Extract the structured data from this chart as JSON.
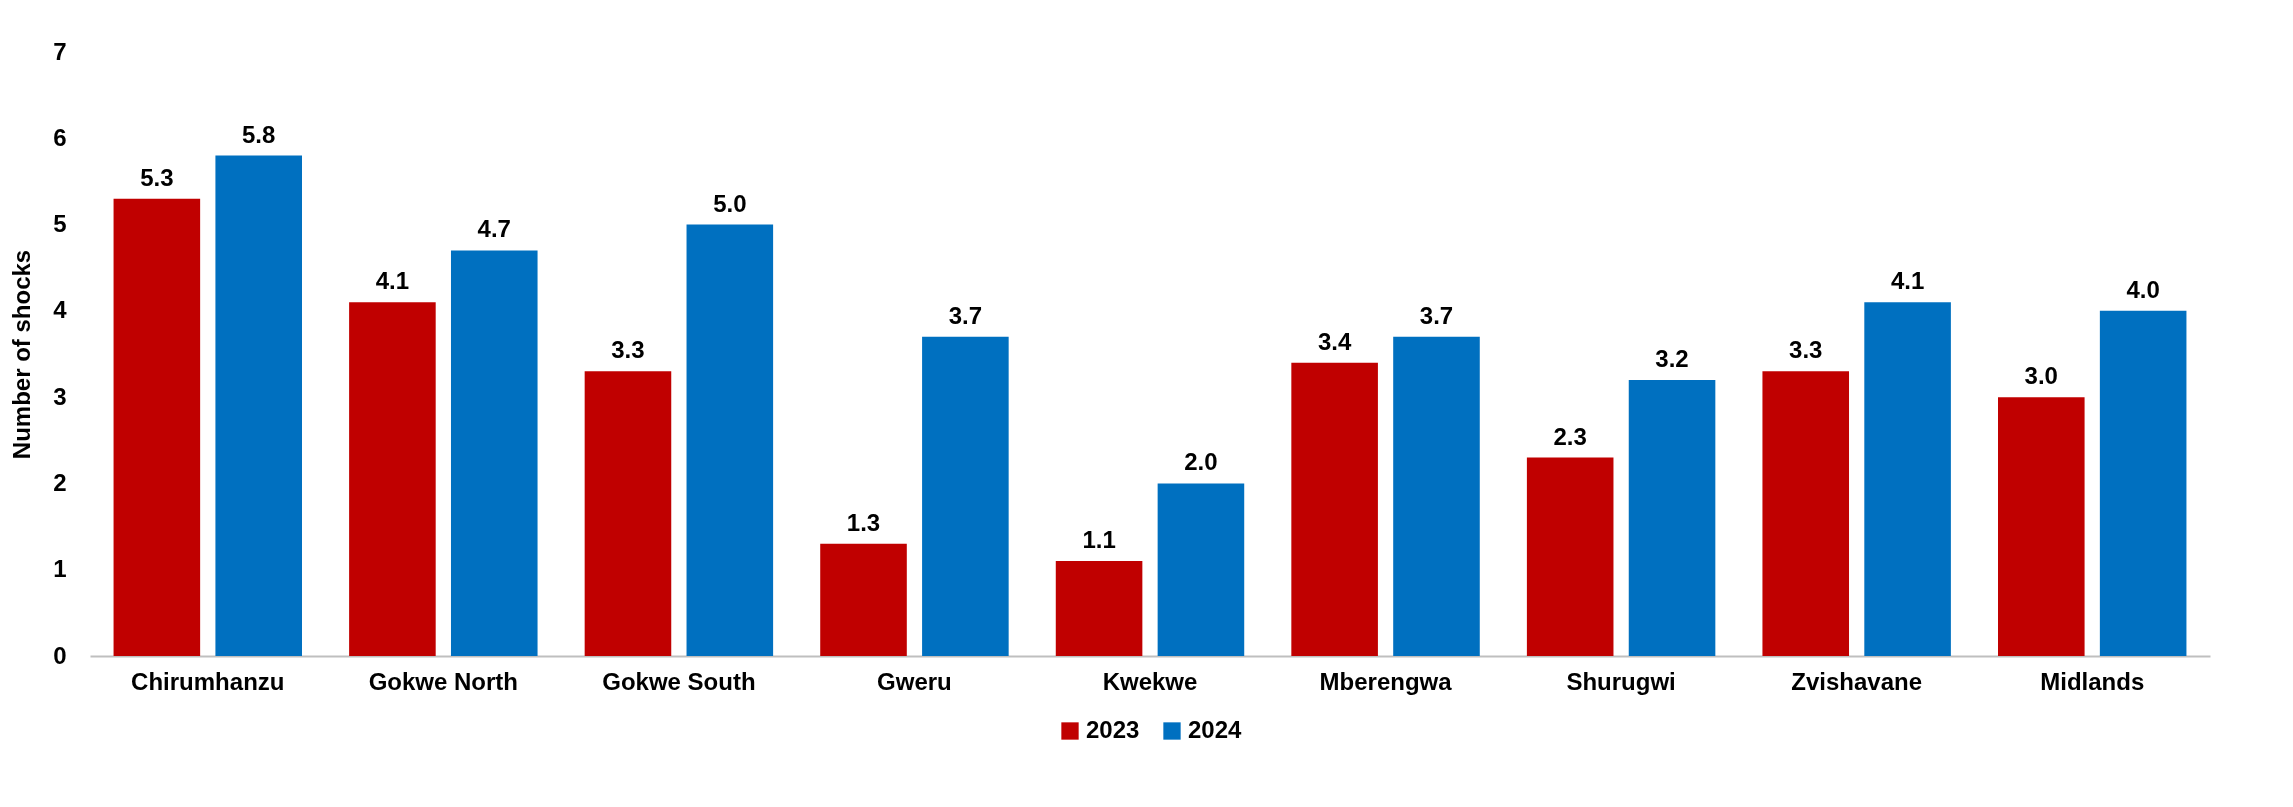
{
  "chart_data": {
    "type": "bar",
    "ylabel": "Number of shocks",
    "categories": [
      "Chirumhanzu",
      "Gokwe North",
      "Gokwe South",
      "Gweru",
      "Kwekwe",
      "Mberengwa",
      "Shurugwi",
      "Zvishavane",
      "Midlands"
    ],
    "series": [
      {
        "name": "2023",
        "color": "#c00000",
        "values": [
          5.3,
          4.1,
          3.3,
          1.3,
          1.1,
          3.4,
          2.3,
          3.3,
          3.0
        ],
        "value_labels": [
          "5.3",
          "4.1",
          "3.3",
          "1.3",
          "1.1",
          "3.4",
          "2.3",
          "3.3",
          "3.0"
        ]
      },
      {
        "name": "2024",
        "color": "#0070c0",
        "values": [
          5.8,
          4.7,
          5.0,
          3.7,
          2.0,
          3.7,
          3.2,
          4.1,
          4.0
        ],
        "value_labels": [
          "5.8",
          "4.7",
          "5.0",
          "3.7",
          "2.0",
          "3.7",
          "3.2",
          "4.1",
          "4.0"
        ]
      }
    ],
    "ylim": [
      0,
      7
    ],
    "yticks": [
      0,
      1,
      2,
      3,
      4,
      5,
      6,
      7
    ],
    "grid": false,
    "legend": "bottom"
  }
}
